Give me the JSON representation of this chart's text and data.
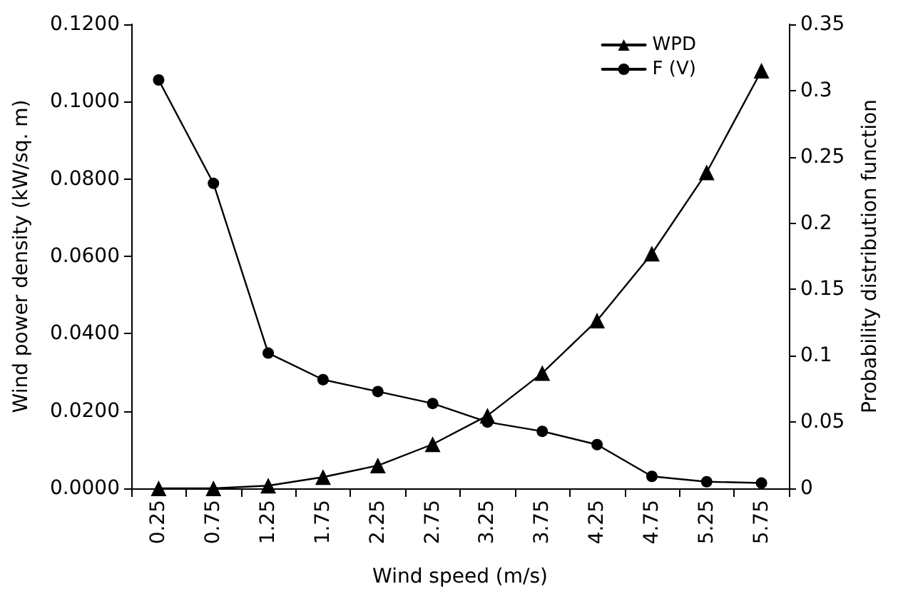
{
  "chart_data": {
    "type": "line",
    "xlabel": "Wind speed (m/s)",
    "ylabel": "Wind power density (kW/sq. m)",
    "y2label": "Probability distribution function",
    "categories": [
      "0.25",
      "0.75",
      "1.25",
      "1.75",
      "2.25",
      "2.75",
      "3.25",
      "3.75",
      "4.25",
      "4.75",
      "5.25",
      "5.75"
    ],
    "series": [
      {
        "name": "WPD",
        "color": "#000000",
        "marker": "triangle",
        "values": [
          0,
          0,
          0.0007,
          0.0029,
          0.0059,
          0.0114,
          0.0188,
          0.0298,
          0.0434,
          0.0607,
          0.0817,
          0.108
        ]
      },
      {
        "name": "F (V)",
        "color": "#000000",
        "marker": "circle",
        "axis": "y2",
        "values": [
          0.308,
          0.23,
          0.102,
          0.082,
          0.073,
          0.064,
          0.05,
          0.043,
          0.033,
          0.009,
          0.005,
          0.004
        ]
      }
    ],
    "ylim": [
      0,
      0.12
    ],
    "yticks": [
      {
        "value": 0,
        "label": "0.0000"
      },
      {
        "value": 0.02,
        "label": "0.0200"
      },
      {
        "value": 0.04,
        "label": "0.0400"
      },
      {
        "value": 0.06,
        "label": "0.0600"
      },
      {
        "value": 0.08,
        "label": "0.0800"
      },
      {
        "value": 0.1,
        "label": "0.1000"
      },
      {
        "value": 0.12,
        "label": "0.1200"
      }
    ],
    "y2lim": [
      0,
      0.35
    ],
    "y2ticks": [
      0,
      0.05,
      0.1,
      0.15,
      0.2,
      0.25,
      0.3,
      0.35
    ],
    "legend": "top right",
    "grid": false,
    "line_style": "solid"
  }
}
